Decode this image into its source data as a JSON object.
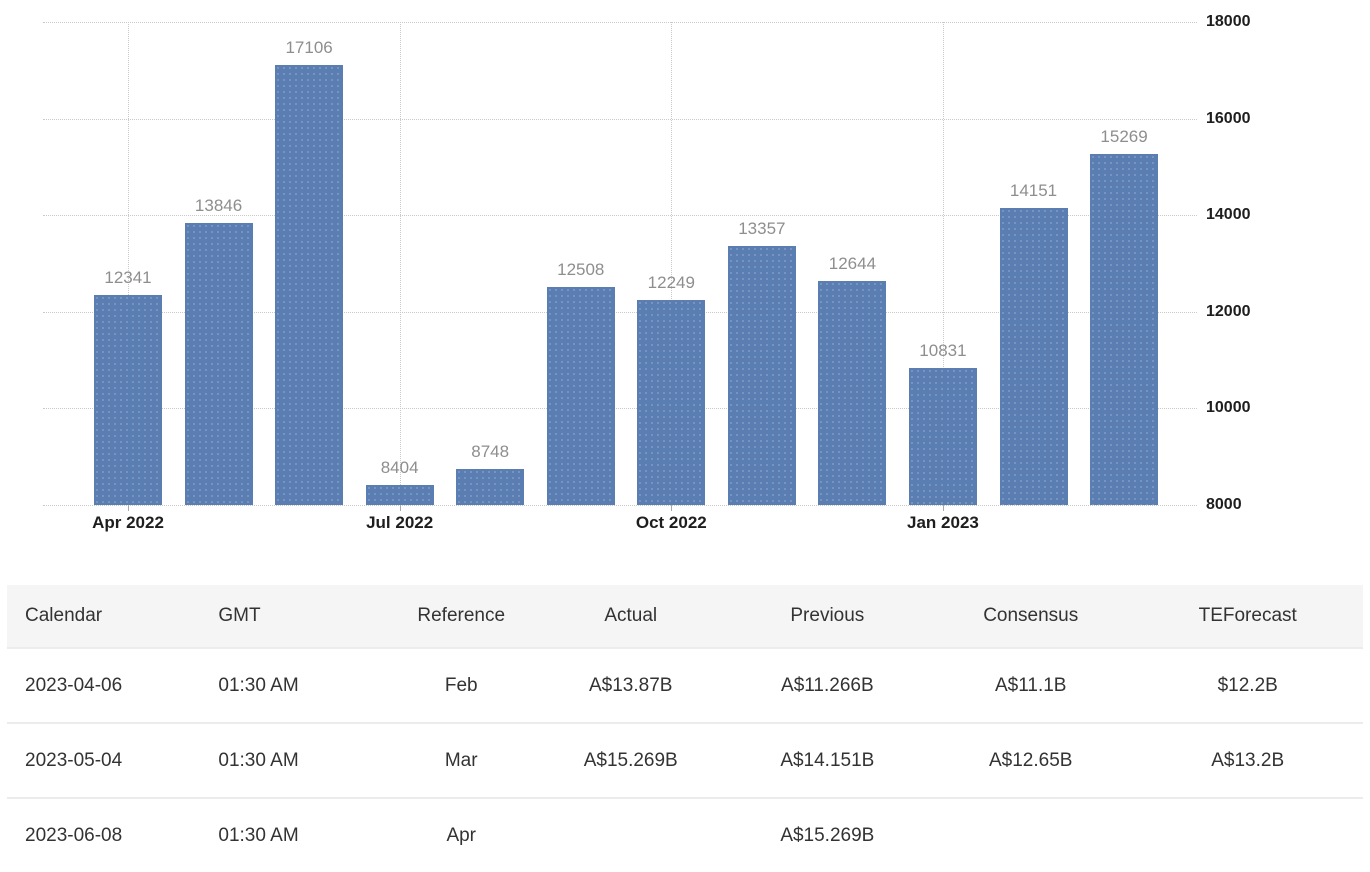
{
  "chart_data": {
    "type": "bar",
    "bar_values": [
      12341,
      13846,
      17106,
      8404,
      8748,
      12508,
      12249,
      13357,
      12644,
      10831,
      14151,
      15269
    ],
    "bar_value_labels_shown": true,
    "x_ticks": [
      {
        "label": "Apr 2022",
        "bar_index": 0
      },
      {
        "label": "Jul 2022",
        "bar_index": 3
      },
      {
        "label": "Oct 2022",
        "bar_index": 6
      },
      {
        "label": "Jan 2023",
        "bar_index": 9
      }
    ],
    "y_ticks": [
      8000,
      10000,
      12000,
      14000,
      16000,
      18000
    ],
    "ylim": [
      8000,
      18000
    ],
    "y_axis_side": "right",
    "grid": "dotted",
    "bar_color": "#5a7eb2",
    "value_label_color": "#8e8e8e"
  },
  "table": {
    "columns": [
      "Calendar",
      "GMT",
      "Reference",
      "Actual",
      "Previous",
      "Consensus",
      "TEForecast"
    ],
    "rows": [
      [
        "2023-04-06",
        "01:30 AM",
        "Feb",
        "A$13.87B",
        "A$11.266B",
        "A$11.1B",
        "$12.2B"
      ],
      [
        "2023-05-04",
        "01:30 AM",
        "Mar",
        "A$15.269B",
        "A$14.151B",
        "A$12.65B",
        "A$13.2B"
      ],
      [
        "2023-06-08",
        "01:30 AM",
        "Apr",
        "",
        "A$15.269B",
        "",
        ""
      ]
    ]
  }
}
